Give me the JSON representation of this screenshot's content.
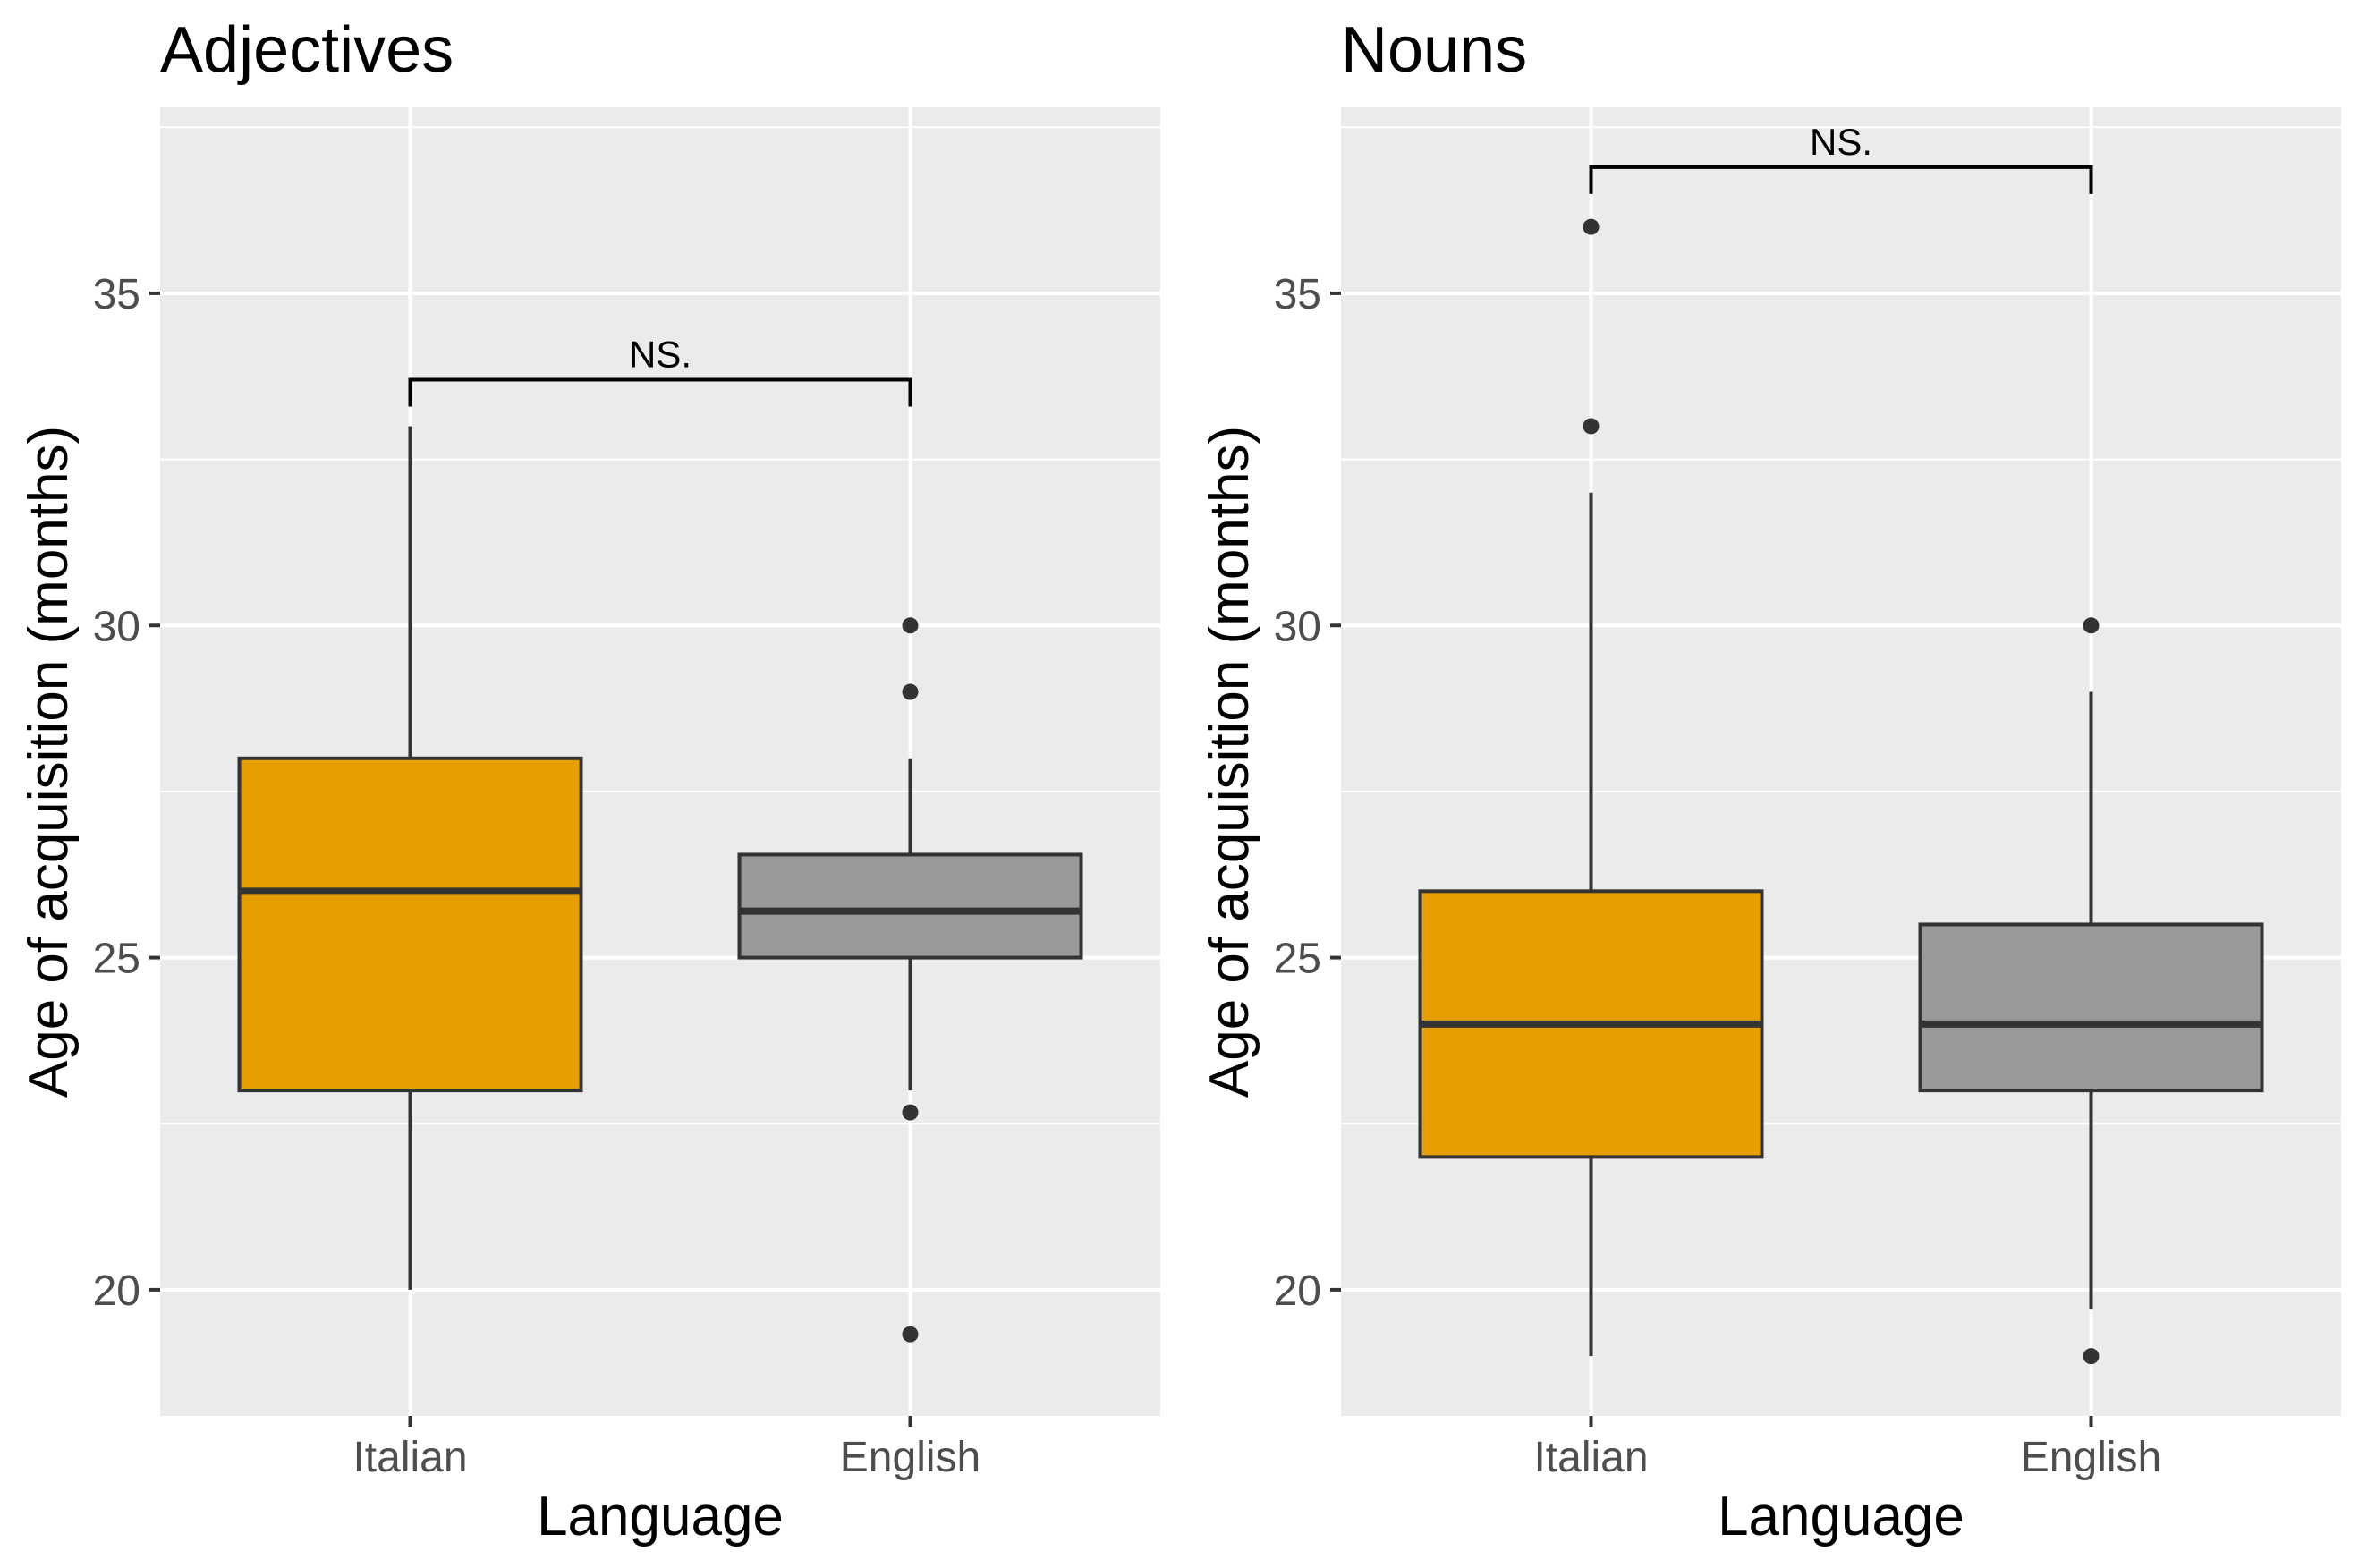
{
  "colors": {
    "panel_bg": "#ebebeb",
    "grid": "#ffffff",
    "box_italian": "#E69F00",
    "box_english": "#999999",
    "box_stroke": "#333333",
    "outlier": "#333333",
    "bracket": "#000000"
  },
  "chart_data": [
    {
      "type": "box",
      "title": "Adjectives",
      "xlabel": "Language",
      "ylabel": "Age of acquisition (months)",
      "ylim": [
        18.1,
        37.8
      ],
      "yticks": [
        20,
        25,
        30,
        35
      ],
      "ytick_labels": [
        "20",
        "25",
        "30",
        "35"
      ],
      "grid": true,
      "categories": [
        "Italian",
        "English"
      ],
      "boxes": [
        {
          "category": "Italian",
          "whisker_low": 20,
          "q1": 23,
          "median": 26,
          "q3": 28,
          "whisker_high": 33,
          "outliers": []
        },
        {
          "category": "English",
          "whisker_low": 23,
          "q1": 25,
          "median": 25.7,
          "q3": 26.55,
          "whisker_high": 28,
          "outliers": [
            30,
            29,
            22.67,
            19.33
          ]
        }
      ],
      "significance": {
        "label": "NS.",
        "y": 33.7,
        "from": "Italian",
        "to": "English"
      }
    },
    {
      "type": "box",
      "title": "Nouns",
      "xlabel": "Language",
      "ylabel": "Age of acquisition (months)",
      "ylim": [
        18.1,
        37.8
      ],
      "yticks": [
        20,
        25,
        30,
        35
      ],
      "ytick_labels": [
        "20",
        "25",
        "30",
        "35"
      ],
      "grid": true,
      "categories": [
        "Italian",
        "English"
      ],
      "boxes": [
        {
          "category": "Italian",
          "whisker_low": 19,
          "q1": 22,
          "median": 24,
          "q3": 26,
          "whisker_high": 32,
          "outliers": [
            36,
            33
          ]
        },
        {
          "category": "English",
          "whisker_low": 19.7,
          "q1": 23,
          "median": 24,
          "q3": 25.5,
          "whisker_high": 29,
          "outliers": [
            30,
            19
          ]
        }
      ],
      "significance": {
        "label": "NS.",
        "y": 36.9,
        "from": "Italian",
        "to": "English"
      }
    }
  ]
}
